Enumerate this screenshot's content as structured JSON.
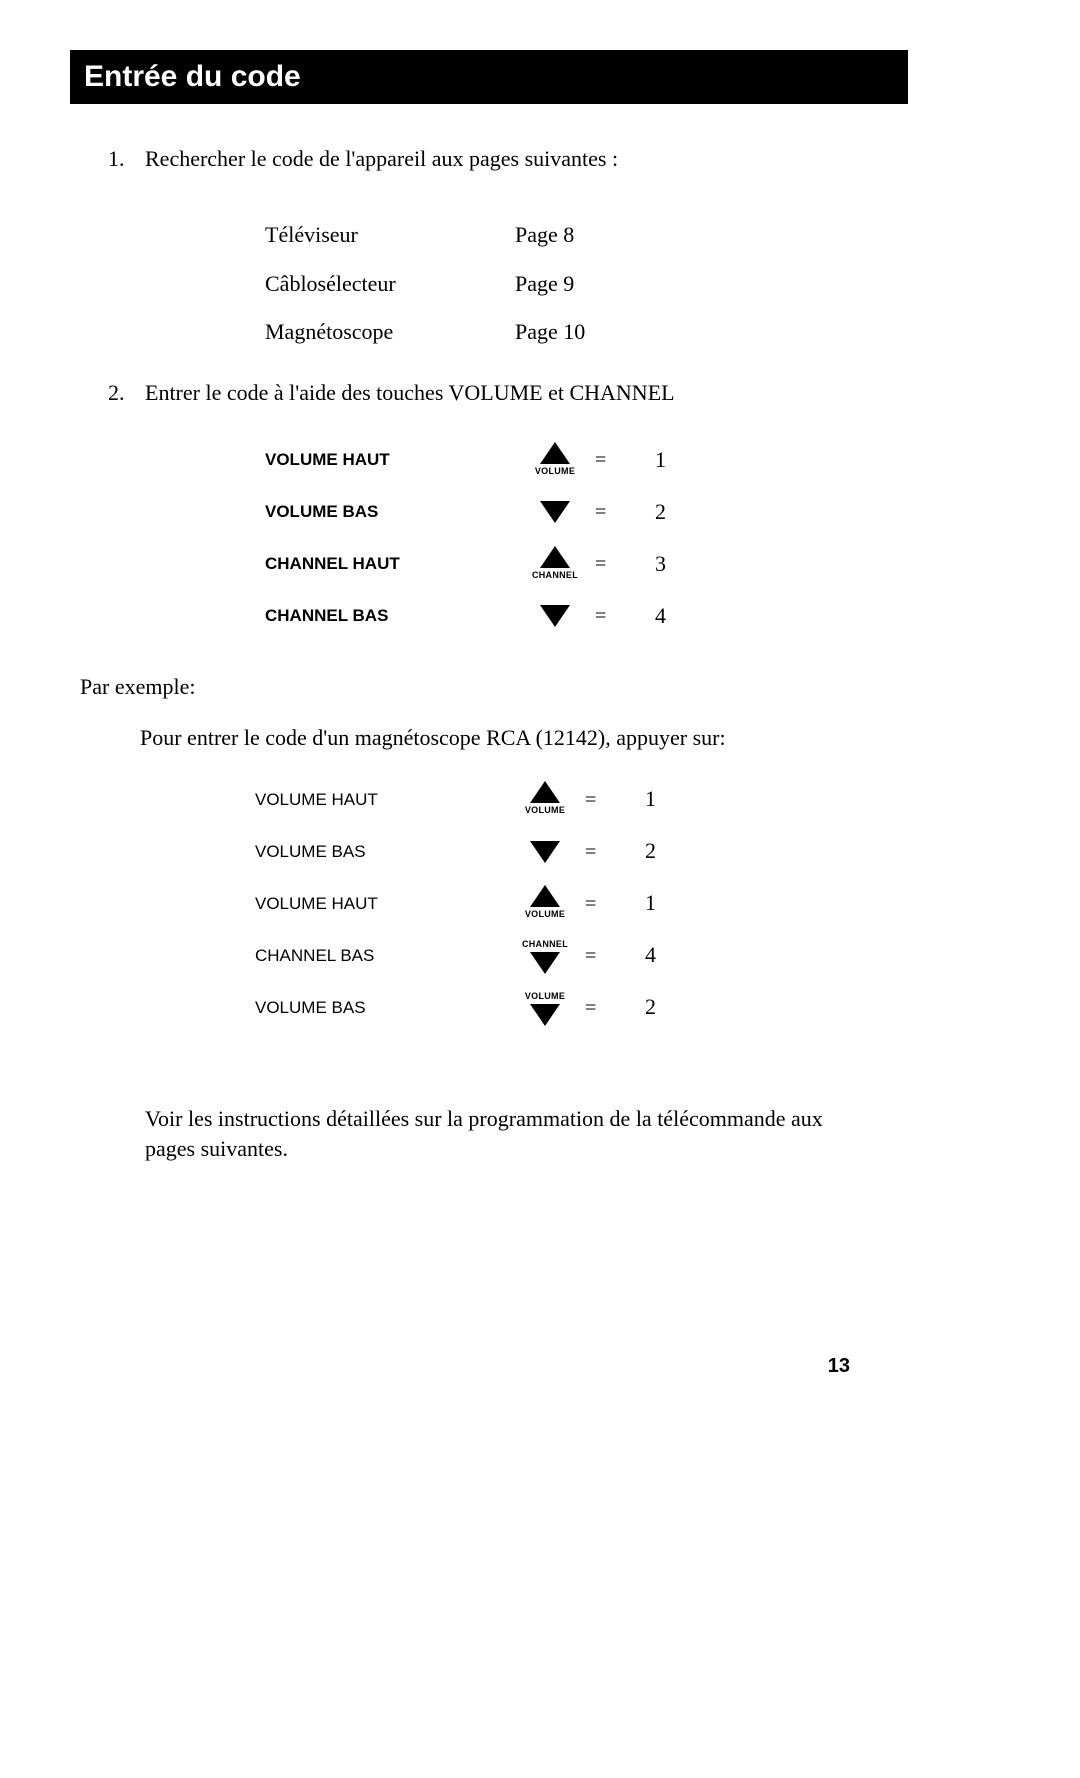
{
  "title": "Entrée du code",
  "step1": {
    "text": "Rechercher le code de l'appareil aux pages suivantes :",
    "devices": [
      {
        "name": "Téléviseur",
        "page": "Page 8"
      },
      {
        "name": "Câblosélecteur",
        "page": "Page 9"
      },
      {
        "name": "Magnétoscope",
        "page": "Page 10"
      }
    ]
  },
  "step2": {
    "text": "Entrer le code à l'aide des touches VOLUME et CHANNEL",
    "keys": [
      {
        "label": "VOLUME HAUT",
        "dir": "up",
        "caption": "VOLUME",
        "cap_pos": "below",
        "eq": "=",
        "num": "1"
      },
      {
        "label": "VOLUME BAS",
        "dir": "down",
        "caption": "",
        "cap_pos": "",
        "eq": "=",
        "num": "2"
      },
      {
        "label": "CHANNEL HAUT",
        "dir": "up",
        "caption": "CHANNEL",
        "cap_pos": "below",
        "eq": "=",
        "num": "3"
      },
      {
        "label": "CHANNEL BAS",
        "dir": "down",
        "caption": "",
        "cap_pos": "",
        "eq": "=",
        "num": "4"
      }
    ]
  },
  "example": {
    "heading": "Par exemple:",
    "text": "Pour entrer le code d'un magnétoscope RCA (12142), appuyer sur:",
    "keys": [
      {
        "label": "VOLUME HAUT",
        "dir": "up",
        "caption": "VOLUME",
        "cap_pos": "below",
        "eq": "=",
        "num": "1"
      },
      {
        "label": "VOLUME BAS",
        "dir": "down",
        "caption": "",
        "cap_pos": "",
        "eq": "=",
        "num": "2"
      },
      {
        "label": "VOLUME HAUT",
        "dir": "up",
        "caption": "VOLUME",
        "cap_pos": "below",
        "eq": "=",
        "num": "1"
      },
      {
        "label": "CHANNEL BAS",
        "dir": "down",
        "caption": "CHANNEL",
        "cap_pos": "above",
        "eq": "=",
        "num": "4"
      },
      {
        "label": "VOLUME BAS",
        "dir": "down",
        "caption": "VOLUME",
        "cap_pos": "above",
        "eq": "=",
        "num": "2"
      }
    ]
  },
  "footer": "Voir les instructions détaillées sur la programmation de la télécommande aux pages suivantes.",
  "page_number": "13",
  "colors": {
    "bg": "#ffffff",
    "text": "#000000",
    "bar_bg": "#000000",
    "bar_text": "#ffffff"
  }
}
